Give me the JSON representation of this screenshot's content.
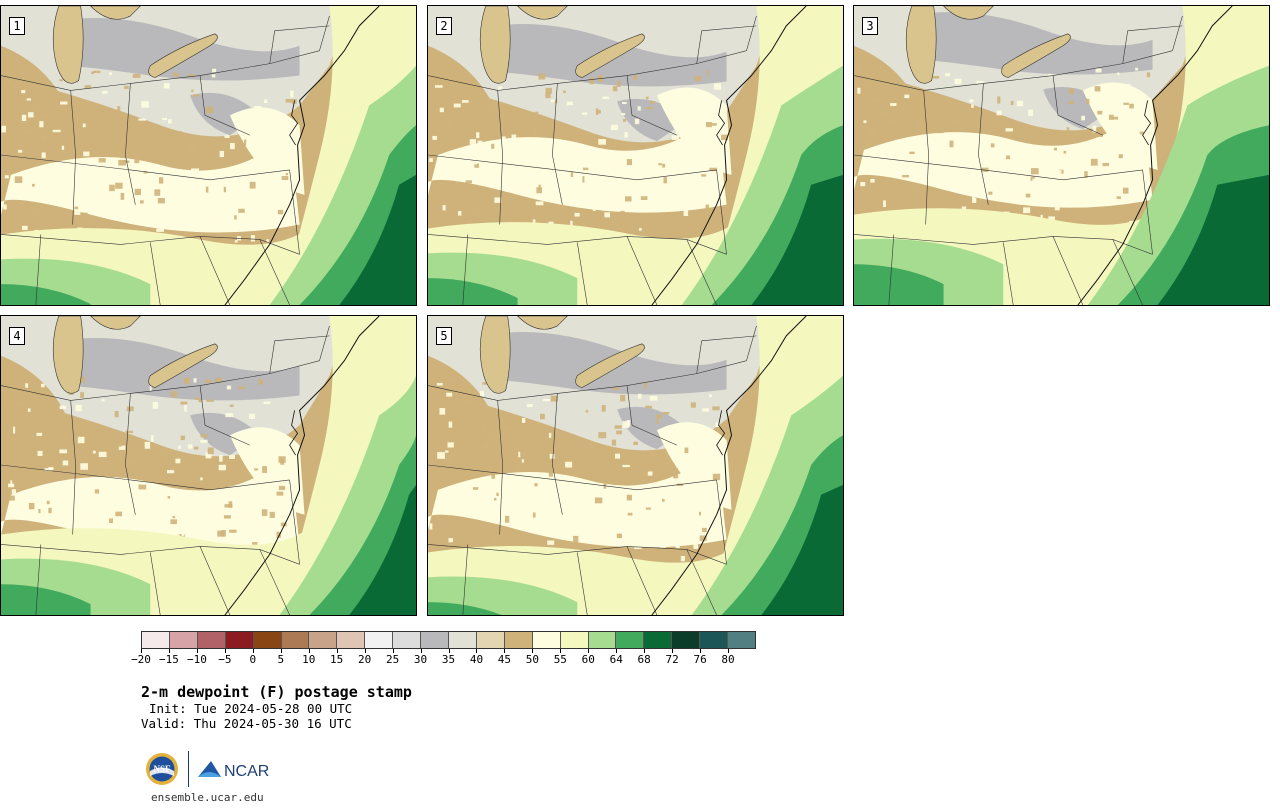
{
  "panels": [
    {
      "num": "1",
      "variant": 0
    },
    {
      "num": "2",
      "variant": 1
    },
    {
      "num": "3",
      "variant": 2
    },
    {
      "num": "4",
      "variant": 3
    },
    {
      "num": "5",
      "variant": 4
    }
  ],
  "colorbar": {
    "colors": [
      "#f5e9e9",
      "#d7a3a6",
      "#b06267",
      "#8c1b22",
      "#8a4514",
      "#ad7a56",
      "#c9a28a",
      "#e0c4b4",
      "#f2f2f2",
      "#dcdcdc",
      "#b9b9bb",
      "#e1e1d6",
      "#e3d5b1",
      "#cfb27a",
      "#fefde0",
      "#f4f8bf",
      "#a6dc90",
      "#41aa5c",
      "#0a6a36",
      "#0b3d2a",
      "#1c5657",
      "#527f82"
    ],
    "tick_labels": [
      "-20",
      "-15",
      "-10",
      "-5",
      "0",
      "5",
      "10",
      "15",
      "20",
      "25",
      "30",
      "35",
      "40",
      "45",
      "50",
      "55",
      "60",
      "64",
      "68",
      "72",
      "76",
      "80"
    ]
  },
  "title": "2-m dewpoint (F) postage stamp",
  "init": "Init: Tue 2024-05-28 00 UTC",
  "valid": "Valid: Thu 2024-05-30 16 UTC",
  "logos": {
    "nsf": "NSF",
    "ncar": "NCAR"
  },
  "site": "ensemble.ucar.edu"
}
